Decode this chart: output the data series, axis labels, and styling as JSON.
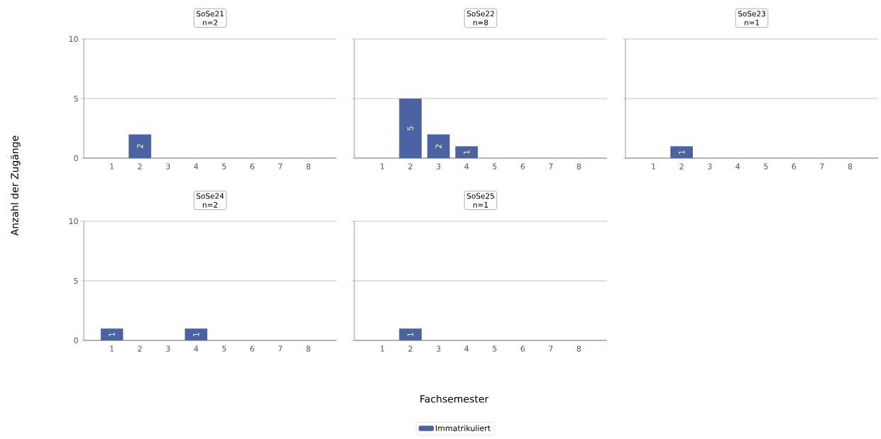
{
  "chart_data": [
    {
      "type": "bar",
      "title": "SoSe21",
      "subtitle": "n=2",
      "ylabel": "Anzahl der Zugänge",
      "categories": [
        "1",
        "2",
        "3",
        "4",
        "5",
        "6",
        "7",
        "8"
      ],
      "series": [
        {
          "color": "#4c63a3",
          "values": [
            0,
            2,
            0,
            0,
            0,
            0,
            0,
            0
          ],
          "value_labels": [
            null,
            "2",
            null,
            null,
            null,
            null,
            null,
            null
          ]
        }
      ],
      "ylim": [
        0,
        10
      ],
      "yticks": [
        0,
        5,
        10
      ],
      "grid": "y"
    },
    {
      "type": "bar",
      "title": "SoSe22",
      "subtitle": "n=8",
      "categories": [
        "1",
        "2",
        "3",
        "4",
        "5",
        "6",
        "7",
        "8"
      ],
      "series": [
        {
          "color": "#4c63a3",
          "values": [
            0,
            5,
            2,
            1,
            0,
            0,
            0,
            0
          ],
          "value_labels": [
            null,
            "5",
            "2",
            "1",
            null,
            null,
            null,
            null
          ]
        }
      ],
      "ylim": [
        0,
        10
      ],
      "yticks": [
        0,
        5,
        10
      ],
      "grid": "y",
      "tick_labels": "x"
    },
    {
      "type": "bar",
      "title": "SoSe23",
      "subtitle": "n=1",
      "categories": [
        "1",
        "2",
        "3",
        "4",
        "5",
        "6",
        "7",
        "8"
      ],
      "series": [
        {
          "color": "#4c63a3",
          "values": [
            0,
            1,
            0,
            0,
            0,
            0,
            0,
            0
          ],
          "value_labels": [
            null,
            "1",
            null,
            null,
            null,
            null,
            null,
            null
          ]
        }
      ],
      "ylim": [
        0,
        10
      ],
      "yticks": [
        0,
        5,
        10
      ],
      "grid": "y",
      "tick_labels": "x"
    },
    {
      "type": "bar",
      "title": "SoSe24",
      "subtitle": "n=2",
      "categories": [
        "1",
        "2",
        "3",
        "4",
        "5",
        "6",
        "7",
        "8"
      ],
      "series": [
        {
          "color": "#4c63a3",
          "values": [
            1,
            0,
            0,
            1,
            0,
            0,
            0,
            0
          ],
          "value_labels": [
            "1",
            null,
            null,
            "1",
            null,
            null,
            null,
            null
          ]
        }
      ],
      "ylim": [
        0,
        10
      ],
      "yticks": [
        0,
        5,
        10
      ],
      "grid": "y"
    },
    {
      "type": "bar",
      "title": "SoSe25",
      "subtitle": "n=1",
      "xlabel": "Fachsemester",
      "categories": [
        "1",
        "2",
        "3",
        "4",
        "5",
        "6",
        "7",
        "8"
      ],
      "series": [
        {
          "name": "Immatrikuliert",
          "color": "#4c63a3",
          "values": [
            0,
            1,
            0,
            0,
            0,
            0,
            0,
            0
          ],
          "value_labels": [
            null,
            "1",
            null,
            null,
            null,
            null,
            null,
            null
          ]
        }
      ],
      "ylim": [
        0,
        10
      ],
      "yticks": [
        0,
        5,
        10
      ],
      "grid": "y",
      "tick_labels": "x",
      "legend": "bottom"
    }
  ]
}
